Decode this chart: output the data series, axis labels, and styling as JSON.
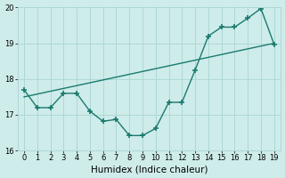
{
  "xlabel": "Humidex (Indice chaleur)",
  "background_color": "#ceecea",
  "grid_color": "#aed8d4",
  "line_color": "#1a7a6e",
  "xlim": [
    -0.5,
    19.5
  ],
  "ylim": [
    16.0,
    20.0
  ],
  "x_ticks": [
    0,
    1,
    2,
    3,
    4,
    5,
    6,
    7,
    8,
    9,
    10,
    11,
    12,
    13,
    14,
    15,
    16,
    17,
    18,
    19
  ],
  "y_ticks": [
    16,
    17,
    18,
    19,
    20
  ],
  "curve1_x": [
    0,
    1,
    2,
    3,
    4,
    5,
    6,
    7,
    8,
    9,
    10,
    11,
    12,
    13,
    14,
    15,
    16,
    17,
    18,
    19
  ],
  "curve1_y": [
    17.7,
    17.2,
    17.2,
    17.6,
    17.6,
    17.1,
    16.82,
    16.87,
    16.42,
    16.42,
    16.62,
    17.35,
    17.35,
    18.25,
    19.2,
    19.45,
    19.45,
    19.7,
    19.97,
    18.97
  ],
  "trend_x": [
    0,
    19
  ],
  "trend_y": [
    17.5,
    19.0
  ],
  "marker": "+",
  "markersize": 4,
  "markeredgewidth": 1.2,
  "linewidth": 1.0,
  "tick_fontsize": 6,
  "xlabel_fontsize": 7.5
}
